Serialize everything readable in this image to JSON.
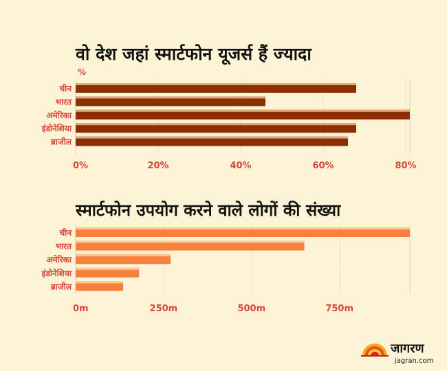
{
  "colors": {
    "chart1_bar": "#8b3005",
    "chart1_highlight": "#e3a679",
    "chart2_bar": "#f8803c",
    "chart2_highlight": "#fdc58f",
    "label": "#d9473a",
    "title": "#111111"
  },
  "chart_data": [
    {
      "type": "bar",
      "orientation": "horizontal",
      "title": "वो देश जहां स्मार्टफोन यूजर्स हैं ज्यादा",
      "unit_label": "%",
      "categories": [
        "चीन",
        "भारत",
        "अमेरिका",
        "इंडोनेशिया",
        "ब्राजील"
      ],
      "values": [
        68,
        46,
        81,
        68,
        66
      ],
      "xlim": [
        0,
        81
      ],
      "ticks": [
        0,
        20,
        40,
        60,
        80
      ],
      "tick_labels": [
        "0%",
        "20%",
        "40%",
        "60%",
        "80%"
      ],
      "grid": true
    },
    {
      "type": "bar",
      "orientation": "horizontal",
      "title": "स्मार्टफोन उपयोग करने वाले लोगों की संख्या",
      "categories": [
        "चीन",
        "भारत",
        "अमेरिका",
        "इंडोनेशिया",
        "ब्राजील"
      ],
      "values": [
        950,
        650,
        270,
        180,
        135
      ],
      "xlim": [
        0,
        950
      ],
      "ticks": [
        0,
        250,
        500,
        750
      ],
      "tick_labels": [
        "0m",
        "250m",
        "500m",
        "750m"
      ],
      "grid": true
    }
  ],
  "logo": {
    "name": "जागरण",
    "site": "jagran.com"
  }
}
